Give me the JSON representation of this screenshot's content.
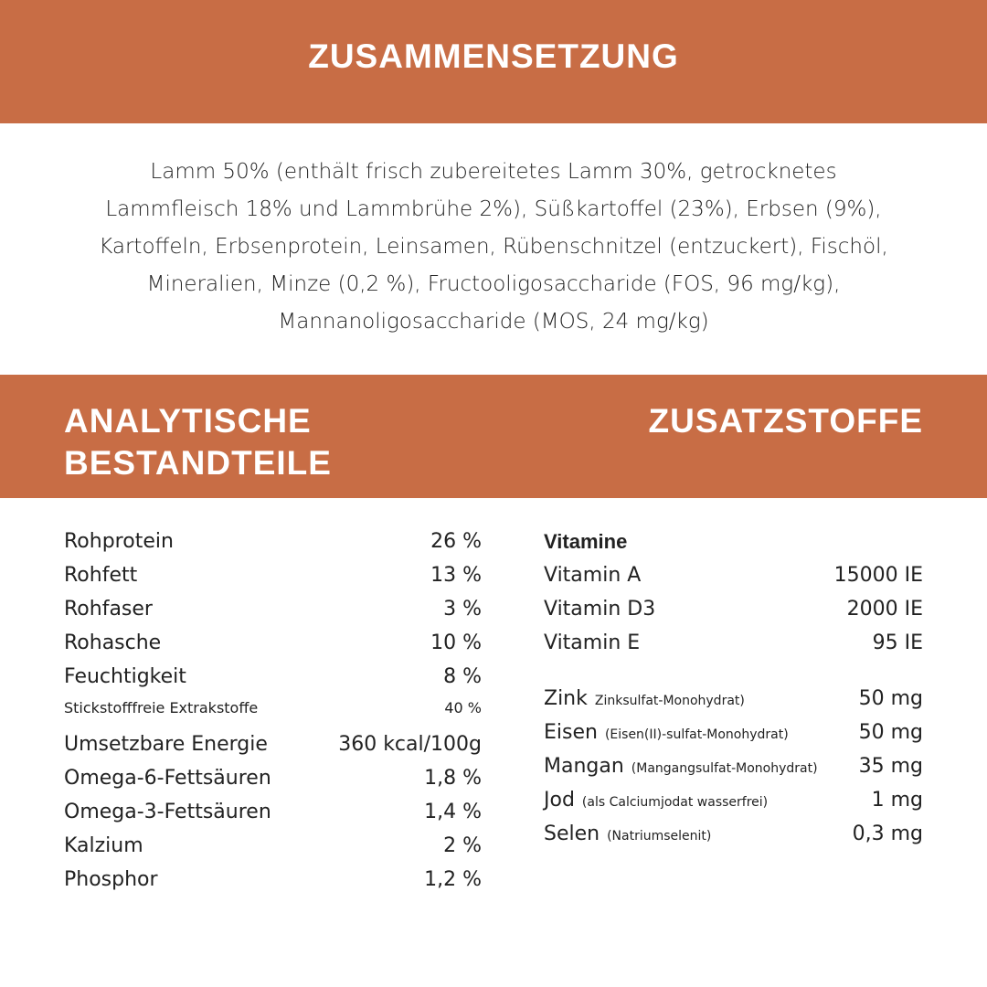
{
  "header": {
    "title": "ZUSAMMENSETZUNG"
  },
  "composition": "Lamm 50% (enthält frisch zubereitetes Lamm 30%, getrocknetes Lammfleisch 18% und Lammbrühe 2%), Süßkartoffel (23%), Erbsen (9%), Kartoffeln, Erbsenprotein, Leinsamen, Rübenschnitzel (entzuckert), Fischöl, Mineralien, Minze (0,2 %), Fructooligosaccharide (FOS, 96 mg/kg), Mannanoligosaccharide (MOS, 24 mg/kg)",
  "section2": {
    "left_title": "ANALYTISCHE BESTANDTEILE",
    "right_title": "ZUSATZSTOFFE"
  },
  "analytics": [
    {
      "label": "Rohprotein",
      "value": "26 %"
    },
    {
      "label": "Rohfett",
      "value": "13 %"
    },
    {
      "label": "Rohfaser",
      "value": "3 %"
    },
    {
      "label": "Rohasche",
      "value": "10 %"
    },
    {
      "label": "Feuchtigkeit",
      "value": "8 %"
    },
    {
      "label": "Stickstofffreie Extrakstoffe",
      "value": "40 %"
    },
    {
      "label": "Umsetzbare Energie",
      "value": "360 kcal/100g"
    },
    {
      "label": "Omega-6-Fettsäuren",
      "value": "1,8 %"
    },
    {
      "label": "Omega-3-Fettsäuren",
      "value": "1,4 %"
    },
    {
      "label": "Kalzium",
      "value": "2 %"
    },
    {
      "label": "Phosphor",
      "value": "1,2 %"
    }
  ],
  "vitamins": {
    "title": "Vitamine",
    "items": [
      {
        "label": "Vitamin A",
        "value": "15000 IE"
      },
      {
        "label": "Vitamin D3",
        "value": "2000 IE"
      },
      {
        "label": "Vitamin E",
        "value": "95 IE"
      }
    ]
  },
  "minerals": [
    {
      "label": "Zink",
      "source": "Zinksulfat-Monohydrat)",
      "value": "50 mg"
    },
    {
      "label": "Eisen",
      "source": "(Eisen(II)-sulfat-Monohydrat)",
      "value": "50 mg"
    },
    {
      "label": "Mangan",
      "source": "(Mangangsulfat-Monohydrat)",
      "value": "35 mg"
    },
    {
      "label": "Jod",
      "source": "(als Calciumjodat wasserfrei)",
      "value": "1 mg"
    },
    {
      "label": "Selen",
      "source": "(Natriumselenit)",
      "value": "0,3 mg"
    }
  ]
}
